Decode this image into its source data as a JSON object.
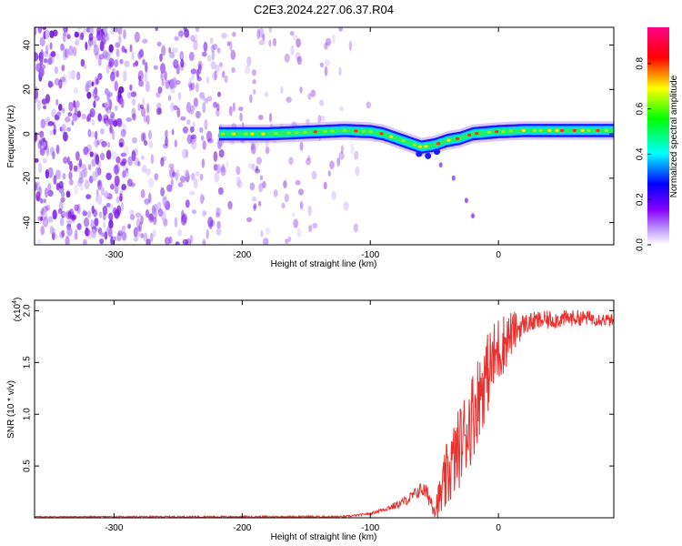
{
  "title": "C2E3.2024.227.06.37.R04",
  "colors": {
    "snr_line": "#e8312e",
    "spectrogram_noise": "#8a3cf0",
    "background": "#ffffff"
  },
  "chart_data": [
    {
      "type": "heatmap",
      "title": "C2E3.2024.227.06.37.R04",
      "xlabel": "Height of straight line (km)",
      "ylabel": "Frequency (Hz)",
      "xlim": [
        -362,
        90
      ],
      "ylim": [
        -50,
        48
      ],
      "x_ticks": [
        -300,
        -200,
        -100,
        0
      ],
      "y_ticks": [
        -40,
        -20,
        0,
        20,
        40
      ],
      "colorbar": {
        "label": "Normalized spectral amplitude",
        "range": [
          0.0,
          0.96
        ],
        "ticks": [
          0.0,
          0.2,
          0.4,
          0.6,
          0.8
        ],
        "colormap": [
          "#ffffff",
          "#8a00ff",
          "#0000ff",
          "#00ffff",
          "#00ff00",
          "#ffff00",
          "#ff0000",
          "#ff0088"
        ]
      },
      "noise_region": [
        {
          "x_from": -362,
          "x_to": -290,
          "density": 0.9
        },
        {
          "x_from": -290,
          "x_to": -215,
          "density": 0.55
        },
        {
          "x_from": -215,
          "x_to": -180,
          "density": 0.3
        },
        {
          "x_from": -180,
          "x_to": -120,
          "density": 0.18
        },
        {
          "x_from": -120,
          "x_to": -100,
          "density": 0.06
        }
      ],
      "signal_trace": [
        {
          "x": -218,
          "f": 0
        },
        {
          "x": -200,
          "f": 0
        },
        {
          "x": -180,
          "f": 0
        },
        {
          "x": -160,
          "f": 0.5
        },
        {
          "x": -140,
          "f": 1
        },
        {
          "x": -120,
          "f": 1.5
        },
        {
          "x": -100,
          "f": 1
        },
        {
          "x": -90,
          "f": 0
        },
        {
          "x": -80,
          "f": -2
        },
        {
          "x": -70,
          "f": -4
        },
        {
          "x": -60,
          "f": -6
        },
        {
          "x": -50,
          "f": -5
        },
        {
          "x": -40,
          "f": -3
        },
        {
          "x": -30,
          "f": -2
        },
        {
          "x": -20,
          "f": 0
        },
        {
          "x": -10,
          "f": 0.5
        },
        {
          "x": 0,
          "f": 1
        },
        {
          "x": 20,
          "f": 1.5
        },
        {
          "x": 40,
          "f": 1.5
        },
        {
          "x": 60,
          "f": 1.5
        },
        {
          "x": 90,
          "f": 1.5
        }
      ],
      "secondary_trace": [
        {
          "x": -45,
          "f": -14
        },
        {
          "x": -35,
          "f": -20
        },
        {
          "x": -25,
          "f": -30
        },
        {
          "x": -20,
          "f": -37
        }
      ]
    },
    {
      "type": "line",
      "xlabel": "Height of straight line (km)",
      "ylabel": "SNR (10 * v/v)",
      "y_multiplier": "(x10",
      "y_multiplier_exp": "4",
      "y_multiplier_close": ")",
      "xlim": [
        -362,
        90
      ],
      "ylim": [
        0,
        2.1
      ],
      "x_ticks": [
        -300,
        -200,
        -100,
        0
      ],
      "y_ticks": [
        0.5,
        1.0,
        1.5,
        2.0
      ],
      "series": [
        {
          "color": "#e8312e",
          "points": [
            {
              "x": -362,
              "y": 0.01
            },
            {
              "x": -300,
              "y": 0.01
            },
            {
              "x": -200,
              "y": 0.01
            },
            {
              "x": -120,
              "y": 0.01
            },
            {
              "x": -100,
              "y": 0.04
            },
            {
              "x": -90,
              "y": 0.08
            },
            {
              "x": -80,
              "y": 0.12
            },
            {
              "x": -70,
              "y": 0.18
            },
            {
              "x": -60,
              "y": 0.28
            },
            {
              "x": -55,
              "y": 0.22
            },
            {
              "x": -50,
              "y": 0.1
            },
            {
              "x": -45,
              "y": 0.2
            },
            {
              "x": -40,
              "y": 0.4
            },
            {
              "x": -35,
              "y": 0.55
            },
            {
              "x": -30,
              "y": 0.7
            },
            {
              "x": -25,
              "y": 0.85
            },
            {
              "x": -20,
              "y": 1.0
            },
            {
              "x": -15,
              "y": 1.2
            },
            {
              "x": -10,
              "y": 1.35
            },
            {
              "x": -5,
              "y": 1.5
            },
            {
              "x": 0,
              "y": 1.62
            },
            {
              "x": 10,
              "y": 1.78
            },
            {
              "x": 20,
              "y": 1.87
            },
            {
              "x": 30,
              "y": 1.9
            },
            {
              "x": 40,
              "y": 1.91
            },
            {
              "x": 50,
              "y": 1.92
            },
            {
              "x": 60,
              "y": 1.93
            },
            {
              "x": 70,
              "y": 1.93
            },
            {
              "x": 80,
              "y": 1.92
            },
            {
              "x": 90,
              "y": 1.9
            }
          ],
          "noise_amplitude": [
            {
              "x": -362,
              "a": 0.005
            },
            {
              "x": -100,
              "a": 0.01
            },
            {
              "x": -70,
              "a": 0.05
            },
            {
              "x": -50,
              "a": 0.1
            },
            {
              "x": -40,
              "a": 0.35
            },
            {
              "x": -20,
              "a": 0.45
            },
            {
              "x": 0,
              "a": 0.35
            },
            {
              "x": 20,
              "a": 0.1
            },
            {
              "x": 90,
              "a": 0.06
            }
          ]
        }
      ]
    }
  ]
}
